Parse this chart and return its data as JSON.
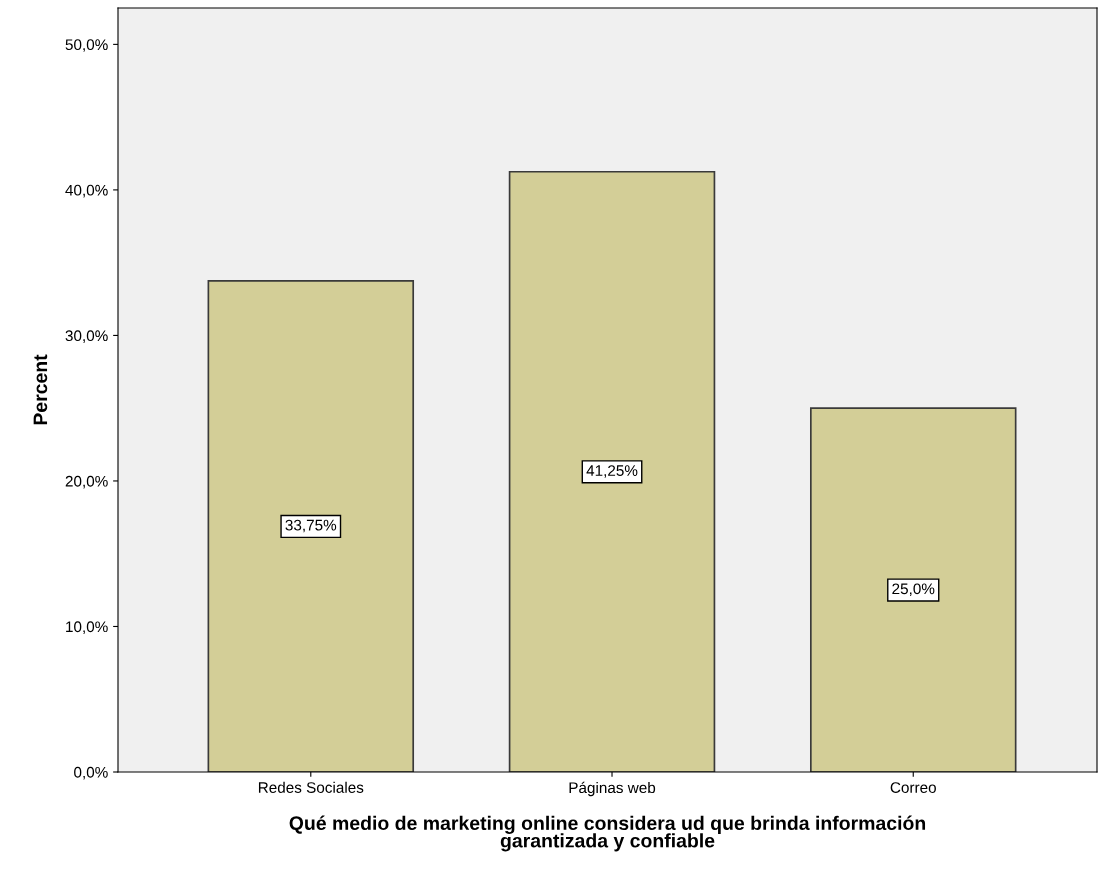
{
  "chart_data": {
    "type": "bar",
    "xlabel": "Qué medio de marketing online considera ud que brinda información\ngarantizada y confiable",
    "ylabel": "Percent",
    "categories": [
      "Redes Sociales",
      "Páginas web",
      "Correo"
    ],
    "values": [
      33.75,
      41.25,
      25.0
    ],
    "color": "#d3ce97",
    "value_labels": [
      "33,75%",
      "41,25%",
      "25,0%"
    ],
    "ylim": [
      0,
      52.5
    ],
    "yticks": [
      {
        "value": 0,
        "label": "0,0%"
      },
      {
        "value": 10,
        "label": "10,0%"
      },
      {
        "value": 20,
        "label": "20,0%"
      },
      {
        "value": 30,
        "label": "30,0%"
      },
      {
        "value": 40,
        "label": "40,0%"
      },
      {
        "value": 50,
        "label": "50,0%"
      }
    ],
    "grid": false,
    "legend": false
  }
}
